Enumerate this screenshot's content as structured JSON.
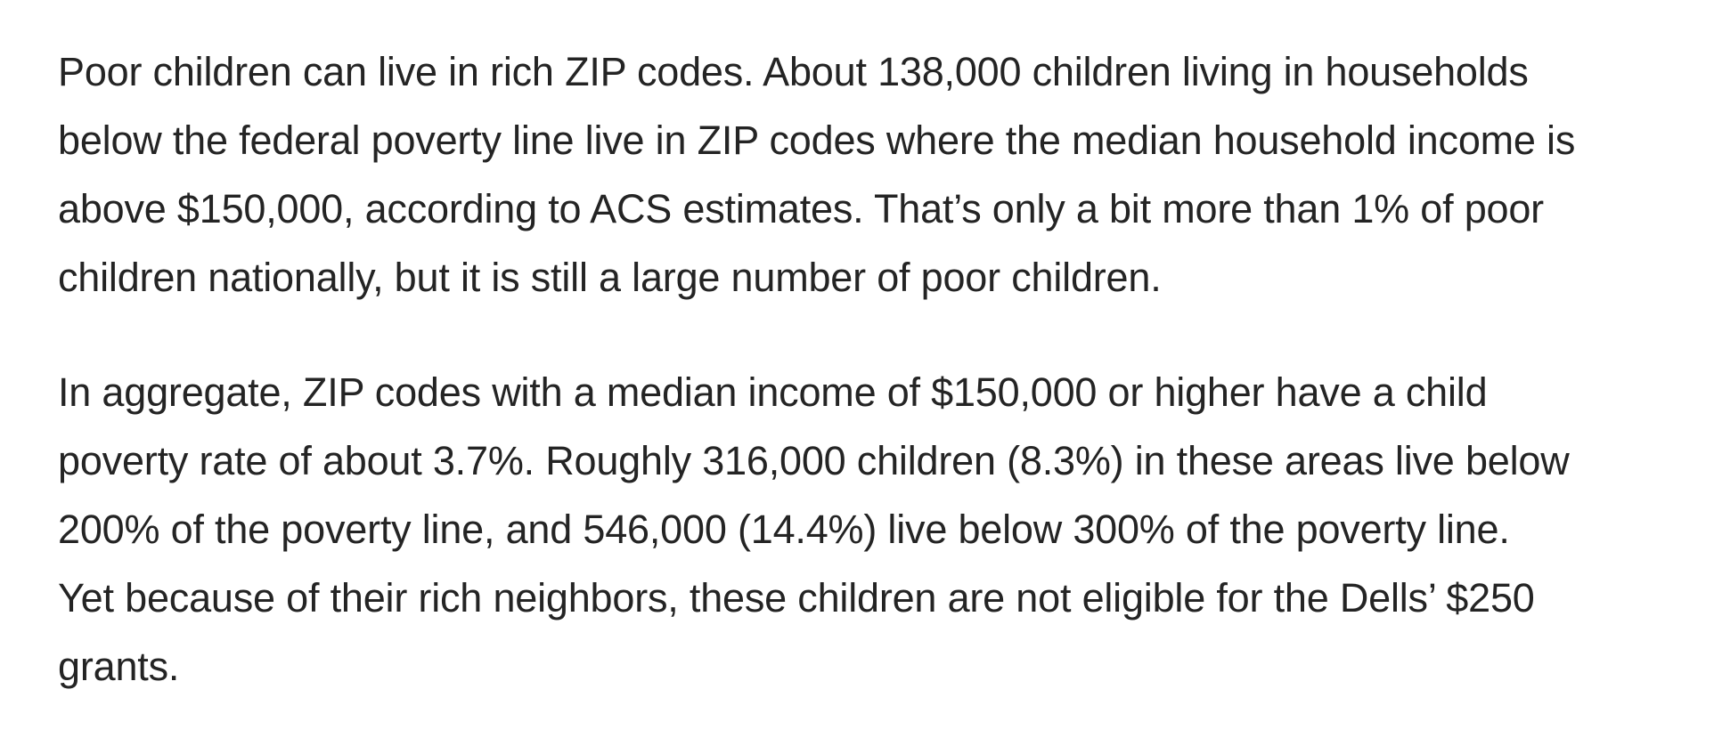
{
  "article": {
    "paragraphs": [
      {
        "lines": [
          "Poor children can live in rich ZIP codes. About 138,000 children living in households",
          "below the federal poverty line live in ZIP codes where the median household income is",
          "above $150,000, according to ACS estimates. That’s only a bit more than 1% of poor",
          "children nationally, but it is still a large number of poor children."
        ]
      },
      {
        "lines": [
          "In aggregate, ZIP codes with a median income of $150,000 or higher have a child",
          "poverty rate of about 3.7%. Roughly 316,000 children (8.3%) in these areas live below",
          "200% of the poverty line, and 546,000 (14.4%) live below 300% of the poverty line.",
          "Yet because of their rich neighbors, these children are not eligible for the Dells’ $250",
          "grants."
        ]
      }
    ]
  }
}
